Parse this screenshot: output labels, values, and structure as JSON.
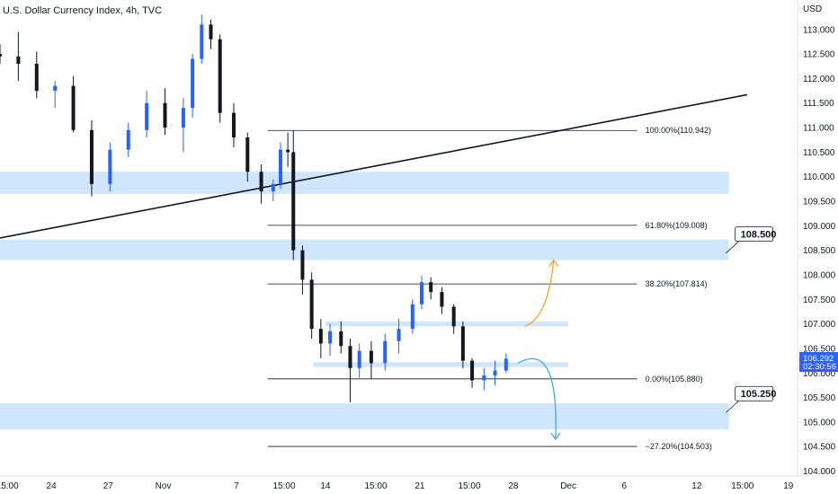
{
  "header": {
    "title": "U.S. Dollar Currency Index, 4h, TVC"
  },
  "axis": {
    "unit_label": "USD",
    "y_ticks": [
      "113.000",
      "112.500",
      "112.000",
      "111.500",
      "111.000",
      "110.500",
      "110.000",
      "109.500",
      "109.000",
      "108.500",
      "108.000",
      "107.500",
      "107.000",
      "106.500",
      "106.000",
      "105.500",
      "105.000",
      "104.500",
      "104.000"
    ],
    "x_ticks": [
      "15:00",
      "24",
      "27",
      "Nov",
      "7",
      "15:00",
      "14",
      "15:00",
      "21",
      "15:00",
      "28",
      "Dec",
      "6",
      "12",
      "15:00",
      "19"
    ]
  },
  "current_price": {
    "value": "106.292",
    "countdown": "02:30:56"
  },
  "colors": {
    "up": "#2962ff",
    "down": "#131722",
    "zone": "#cfe6fd",
    "orange_arrow": "#f5a623",
    "blue_arrow": "#42a5f5"
  },
  "chart_data": {
    "type": "candlestick",
    "title": "U.S. Dollar Currency Index, 4h, TVC",
    "ylabel": "USD",
    "ylim": [
      103.9,
      113.6
    ],
    "x_range_index": [
      0,
      870
    ],
    "scale": "linear",
    "grid": false,
    "candles": [
      {
        "x": 0,
        "o": 112.5,
        "h": 112.7,
        "l": 112.3,
        "c": 112.45
      },
      {
        "x": 20,
        "o": 112.45,
        "h": 112.95,
        "l": 111.95,
        "c": 112.3
      },
      {
        "x": 40,
        "o": 112.3,
        "h": 112.55,
        "l": 111.6,
        "c": 111.75
      },
      {
        "x": 60,
        "o": 111.75,
        "h": 111.95,
        "l": 111.4,
        "c": 111.85
      },
      {
        "x": 80,
        "o": 111.85,
        "h": 112.05,
        "l": 110.9,
        "c": 110.95
      },
      {
        "x": 100,
        "o": 110.95,
        "h": 111.15,
        "l": 109.6,
        "c": 109.85
      },
      {
        "x": 120,
        "o": 109.85,
        "h": 110.7,
        "l": 109.7,
        "c": 110.55
      },
      {
        "x": 140,
        "o": 110.55,
        "h": 111.1,
        "l": 110.4,
        "c": 110.95
      },
      {
        "x": 160,
        "o": 110.95,
        "h": 111.75,
        "l": 110.8,
        "c": 111.5
      },
      {
        "x": 180,
        "o": 111.5,
        "h": 111.8,
        "l": 110.85,
        "c": 111.0
      },
      {
        "x": 200,
        "o": 111.0,
        "h": 111.6,
        "l": 110.5,
        "c": 111.4
      },
      {
        "x": 210,
        "o": 111.4,
        "h": 112.5,
        "l": 111.2,
        "c": 112.4
      },
      {
        "x": 220,
        "o": 112.4,
        "h": 113.3,
        "l": 112.3,
        "c": 113.1
      },
      {
        "x": 230,
        "o": 113.1,
        "h": 113.2,
        "l": 112.6,
        "c": 112.8
      },
      {
        "x": 240,
        "o": 112.8,
        "h": 112.9,
        "l": 111.1,
        "c": 111.3
      },
      {
        "x": 255,
        "o": 111.3,
        "h": 111.5,
        "l": 110.6,
        "c": 110.8
      },
      {
        "x": 270,
        "o": 110.8,
        "h": 110.9,
        "l": 109.9,
        "c": 110.1
      },
      {
        "x": 285,
        "o": 110.1,
        "h": 110.25,
        "l": 109.45,
        "c": 109.7
      },
      {
        "x": 298,
        "o": 109.7,
        "h": 109.95,
        "l": 109.5,
        "c": 109.85
      },
      {
        "x": 306,
        "o": 109.85,
        "h": 110.7,
        "l": 109.75,
        "c": 110.55
      },
      {
        "x": 314,
        "o": 110.55,
        "h": 110.9,
        "l": 110.2,
        "c": 110.5
      },
      {
        "x": 320,
        "o": 110.5,
        "h": 110.94,
        "l": 108.3,
        "c": 108.5
      },
      {
        "x": 330,
        "o": 108.5,
        "h": 108.6,
        "l": 107.6,
        "c": 107.9
      },
      {
        "x": 340,
        "o": 107.9,
        "h": 108.05,
        "l": 106.7,
        "c": 106.9
      },
      {
        "x": 350,
        "o": 106.9,
        "h": 107.1,
        "l": 106.3,
        "c": 106.6
      },
      {
        "x": 360,
        "o": 106.6,
        "h": 107.0,
        "l": 106.35,
        "c": 106.85
      },
      {
        "x": 372,
        "o": 106.85,
        "h": 107.05,
        "l": 106.4,
        "c": 106.55
      },
      {
        "x": 382,
        "o": 106.55,
        "h": 106.7,
        "l": 105.4,
        "c": 106.1
      },
      {
        "x": 392,
        "o": 106.1,
        "h": 106.6,
        "l": 105.9,
        "c": 106.45
      },
      {
        "x": 405,
        "o": 106.45,
        "h": 106.65,
        "l": 105.88,
        "c": 106.2
      },
      {
        "x": 420,
        "o": 106.2,
        "h": 106.8,
        "l": 106.05,
        "c": 106.65
      },
      {
        "x": 435,
        "o": 106.65,
        "h": 107.1,
        "l": 106.4,
        "c": 106.9
      },
      {
        "x": 450,
        "o": 106.9,
        "h": 107.5,
        "l": 106.8,
        "c": 107.4
      },
      {
        "x": 460,
        "o": 107.4,
        "h": 107.98,
        "l": 107.3,
        "c": 107.85
      },
      {
        "x": 470,
        "o": 107.85,
        "h": 107.95,
        "l": 107.5,
        "c": 107.65
      },
      {
        "x": 482,
        "o": 107.65,
        "h": 107.75,
        "l": 107.2,
        "c": 107.35
      },
      {
        "x": 495,
        "o": 107.35,
        "h": 107.4,
        "l": 106.8,
        "c": 106.95
      },
      {
        "x": 505,
        "o": 106.95,
        "h": 107.05,
        "l": 106.1,
        "c": 106.25
      },
      {
        "x": 515,
        "o": 106.25,
        "h": 106.3,
        "l": 105.7,
        "c": 105.85
      },
      {
        "x": 528,
        "o": 105.85,
        "h": 106.1,
        "l": 105.65,
        "c": 105.95
      },
      {
        "x": 540,
        "o": 105.95,
        "h": 106.25,
        "l": 105.75,
        "c": 106.05
      },
      {
        "x": 552,
        "o": 106.05,
        "h": 106.4,
        "l": 106.0,
        "c": 106.29
      }
    ],
    "trendline": {
      "start": {
        "x": 0,
        "y": 108.75
      },
      "end": {
        "x": 815,
        "y": 111.67
      }
    },
    "zones": [
      {
        "from": 109.65,
        "to": 110.1,
        "x_end": 795
      },
      {
        "from": 108.3,
        "to": 108.72,
        "x_end": 795
      },
      {
        "from": 106.95,
        "to": 107.05,
        "x_start": 355,
        "x_end": 620
      },
      {
        "from": 106.12,
        "to": 106.22,
        "x_start": 342,
        "x_end": 620
      },
      {
        "from": 104.85,
        "to": 105.38,
        "x_end": 795
      }
    ],
    "fib_levels": [
      {
        "label": "100.00%(110.942)",
        "value": 110.942
      },
      {
        "label": "61.80%(109.008)",
        "value": 109.008
      },
      {
        "label": "38.20%(107.814)",
        "value": 107.814
      },
      {
        "label": "0.00%(105.880)",
        "value": 105.88
      },
      {
        "label": "−27.20%(104.503)",
        "value": 104.503
      }
    ],
    "callouts": [
      {
        "label": "108.500",
        "value": 108.5
      },
      {
        "label": "105.250",
        "value": 105.25
      }
    ],
    "arrows": [
      {
        "color": "orange",
        "from": 106.95,
        "to": 108.3
      },
      {
        "color": "blue",
        "from": 106.2,
        "to": 104.65
      }
    ]
  }
}
